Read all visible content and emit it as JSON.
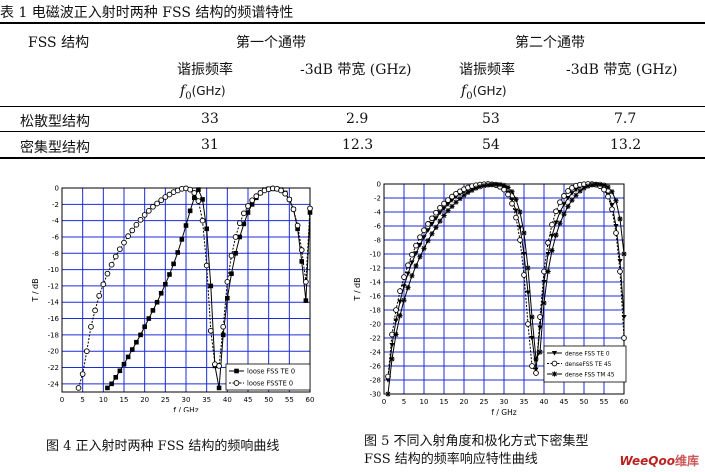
{
  "table": {
    "title": "表 1  电磁波正入射时两种 FSS 结构的频谱特性",
    "hdr_structure": "FSS 结构",
    "band1": "第一个通带",
    "band2": "第二个通带",
    "res_freq": "谐振频率",
    "f0_sym": "f",
    "f0_sub": "0",
    "f0_unit": "(GHz)",
    "bw": "-3dB 带宽 (GHz)",
    "rows": [
      {
        "name": "松散型结构",
        "f1": "33",
        "bw1": "2.9",
        "f2": "53",
        "bw2": "7.7"
      },
      {
        "name": "密集型结构",
        "f1": "31",
        "bw1": "12.3",
        "f2": "54",
        "bw2": "13.2"
      }
    ]
  },
  "fig4": {
    "caption": "图 4  正入射时两种 FSS 结构的频响曲线",
    "chart_data": {
      "type": "line",
      "xlabel": "f / GHz",
      "ylabel": "T / dB",
      "xlim": [
        0,
        60
      ],
      "ylim": [
        -25,
        0
      ],
      "xticks": [
        "0",
        "5",
        "10",
        "15",
        "20",
        "25",
        "30",
        "35",
        "40",
        "45",
        "50",
        "55",
        "60"
      ],
      "yticks": [
        "0",
        "-2",
        "-4",
        "-6",
        "-8",
        "-10",
        "-12",
        "-14",
        "-16",
        "-18",
        "-20",
        "-22",
        "-24"
      ],
      "grid": true,
      "legend_position": "bottom-right",
      "series": [
        {
          "name": "loose FSS TE 0",
          "marker": "square",
          "x": [
            11,
            12,
            13,
            14,
            15,
            16,
            17,
            18,
            19,
            20,
            21,
            22,
            23,
            24,
            25,
            26,
            27,
            28,
            29,
            30,
            31,
            32,
            33,
            34,
            35,
            36,
            37,
            38,
            39,
            40,
            41,
            42,
            43,
            44,
            45,
            46,
            47,
            48,
            49,
            50,
            51,
            52,
            53,
            54,
            55,
            56,
            57,
            58,
            59,
            60
          ],
          "y": [
            -24.5,
            -24,
            -23.2,
            -22.4,
            -21.6,
            -20.7,
            -19.8,
            -18.9,
            -18,
            -17,
            -16,
            -15,
            -14,
            -12.9,
            -11.8,
            -10.6,
            -9.3,
            -7.9,
            -6.3,
            -4.6,
            -2.8,
            -1.2,
            -0.2,
            -1.4,
            -5,
            -12,
            -21.8,
            -24.5,
            -18,
            -13.5,
            -10.5,
            -8,
            -6,
            -4.4,
            -3,
            -2,
            -1.2,
            -0.6,
            -0.2,
            -0.1,
            -0.1,
            -0.1,
            -0.2,
            -0.6,
            -1.4,
            -2.6,
            -5,
            -9,
            -13.8,
            -3
          ]
        },
        {
          "name": "loose FSSTE 0",
          "marker": "circle",
          "x": [
            4,
            5,
            6,
            7,
            8,
            9,
            10,
            11,
            12,
            13,
            14,
            15,
            16,
            17,
            18,
            19,
            20,
            21,
            22,
            23,
            24,
            25,
            26,
            27,
            28,
            29,
            30,
            31,
            32,
            33,
            34,
            35,
            36,
            37,
            38,
            39,
            40,
            41,
            42,
            43,
            44,
            45,
            46,
            47,
            48,
            49,
            50,
            51,
            52,
            53,
            54,
            55,
            56,
            57,
            58,
            59,
            60
          ],
          "y": [
            -24.5,
            -22.8,
            -20,
            -17,
            -15,
            -13.2,
            -11.8,
            -10.5,
            -9.4,
            -8.4,
            -7.5,
            -6.7,
            -5.9,
            -5.2,
            -4.5,
            -3.9,
            -3.3,
            -2.8,
            -2.3,
            -1.9,
            -1.5,
            -1.1,
            -0.8,
            -0.5,
            -0.3,
            -0.1,
            -0.05,
            -0.2,
            -0.6,
            -1.6,
            -4,
            -9.5,
            -17.5,
            -21.6,
            -21.8,
            -17,
            -11.5,
            -8.3,
            -6,
            -4.3,
            -3.1,
            -2.2,
            -1.5,
            -1,
            -0.6,
            -0.3,
            -0.15,
            -0.05,
            -0.1,
            -0.3,
            -0.7,
            -1.4,
            -2.6,
            -4.6,
            -7.6,
            -11.5,
            -2.5
          ]
        }
      ]
    }
  },
  "fig5": {
    "caption_l1": "图  5  不同入射角度和极化方式下密集型",
    "caption_l2": "FSS 结构的频率响应特性曲线",
    "chart_data": {
      "type": "line",
      "xlabel": "f / GHz",
      "ylabel": "T / dB",
      "xlim": [
        0,
        60
      ],
      "ylim": [
        -30,
        0
      ],
      "xticks": [
        "0",
        "5",
        "10",
        "15",
        "20",
        "25",
        "30",
        "35",
        "40",
        "45",
        "50",
        "55",
        "60"
      ],
      "yticks": [
        "0",
        "-2",
        "-4",
        "-6",
        "-8",
        "-10",
        "-12",
        "-14",
        "-16",
        "-18",
        "-20",
        "-22",
        "-24",
        "-26",
        "-28",
        "-30"
      ],
      "grid": true,
      "legend_position": "bottom-right",
      "series": [
        {
          "name": "dense FSS TE 0",
          "marker": "triangle-down",
          "x": [
            1,
            2,
            3,
            4,
            5,
            6,
            7,
            8,
            9,
            10,
            11,
            12,
            13,
            14,
            15,
            16,
            17,
            18,
            19,
            20,
            21,
            22,
            23,
            24,
            25,
            26,
            27,
            28,
            29,
            30,
            31,
            32,
            33,
            34,
            35,
            36,
            37,
            38,
            39,
            40,
            41,
            42,
            43,
            44,
            45,
            46,
            47,
            48,
            49,
            50,
            51,
            52,
            53,
            54,
            55,
            56,
            57,
            58,
            59,
            60
          ],
          "y": [
            -28,
            -23,
            -19.5,
            -16.8,
            -14.6,
            -12.8,
            -11.2,
            -9.9,
            -8.7,
            -7.6,
            -6.6,
            -5.7,
            -4.9,
            -4.1,
            -3.5,
            -2.9,
            -2.3,
            -1.8,
            -1.4,
            -1.1,
            -0.8,
            -0.5,
            -0.3,
            -0.2,
            -0.1,
            -0.05,
            -0.05,
            -0.1,
            -0.3,
            -0.6,
            -1.2,
            -2.2,
            -3.8,
            -6.2,
            -10,
            -15.5,
            -22,
            -26.5,
            -20.5,
            -14,
            -10,
            -7.4,
            -5.5,
            -4,
            -2.9,
            -2,
            -1.3,
            -0.8,
            -0.4,
            -0.2,
            -0.1,
            -0.05,
            -0.1,
            -0.3,
            -0.7,
            -1.5,
            -3,
            -6,
            -11,
            -19
          ]
        },
        {
          "name": "denseFSS TE 45",
          "marker": "circle",
          "x": [
            1,
            2,
            3,
            4,
            5,
            6,
            7,
            8,
            9,
            10,
            11,
            12,
            13,
            14,
            15,
            16,
            17,
            18,
            19,
            20,
            21,
            22,
            23,
            24,
            25,
            26,
            27,
            28,
            29,
            30,
            31,
            32,
            33,
            34,
            35,
            36,
            37,
            38,
            39,
            40,
            41,
            42,
            43,
            44,
            45,
            46,
            47,
            48,
            49,
            50,
            51,
            52,
            53,
            54,
            55,
            56,
            57,
            58,
            59,
            60
          ],
          "y": [
            -27.5,
            -21.5,
            -18,
            -15.3,
            -13.3,
            -11.6,
            -10.1,
            -8.8,
            -7.6,
            -6.6,
            -5.7,
            -4.9,
            -4.1,
            -3.4,
            -2.8,
            -2.3,
            -1.8,
            -1.4,
            -1.05,
            -0.75,
            -0.5,
            -0.3,
            -0.18,
            -0.08,
            -0.03,
            0,
            -0.05,
            -0.15,
            -0.4,
            -0.8,
            -1.5,
            -2.8,
            -4.8,
            -8,
            -13,
            -20,
            -26,
            -27,
            -19,
            -12.5,
            -8.4,
            -5.8,
            -3.9,
            -2.6,
            -1.7,
            -1,
            -0.55,
            -0.25,
            -0.1,
            -0.03,
            0,
            -0.02,
            -0.1,
            -0.3,
            -0.8,
            -1.8,
            -3.6,
            -7,
            -12.5,
            -22
          ]
        },
        {
          "name": "dense FSS TM 45",
          "marker": "star",
          "x": [
            1,
            2,
            3,
            4,
            5,
            6,
            7,
            8,
            9,
            10,
            11,
            12,
            13,
            14,
            15,
            16,
            17,
            18,
            19,
            20,
            21,
            22,
            23,
            24,
            25,
            26,
            27,
            28,
            29,
            30,
            31,
            32,
            33,
            34,
            35,
            36,
            37,
            38,
            39,
            40,
            41,
            42,
            43,
            44,
            45,
            46,
            47,
            48,
            49,
            50,
            51,
            52,
            53,
            54,
            55,
            56,
            57,
            58,
            59,
            60
          ],
          "y": [
            -30,
            -25,
            -21.5,
            -18.8,
            -16.6,
            -14.8,
            -13.1,
            -11.7,
            -10.4,
            -9.2,
            -8.1,
            -7.1,
            -6.2,
            -5.3,
            -4.5,
            -3.8,
            -3.2,
            -2.6,
            -2.1,
            -1.6,
            -1.2,
            -0.9,
            -0.6,
            -0.4,
            -0.25,
            -0.15,
            -0.08,
            -0.05,
            -0.08,
            -0.2,
            -0.5,
            -1.1,
            -2.2,
            -4,
            -7,
            -12,
            -19,
            -25,
            -24,
            -17,
            -12.5,
            -9.5,
            -7.3,
            -5.6,
            -4.3,
            -3.2,
            -2.3,
            -1.6,
            -1,
            -0.6,
            -0.3,
            -0.12,
            -0.05,
            -0.05,
            -0.15,
            -0.45,
            -1.1,
            -2.4,
            -5,
            -10
          ]
        }
      ]
    }
  },
  "watermark": {
    "brand": "WeeQoo",
    "suffix": "维库"
  }
}
